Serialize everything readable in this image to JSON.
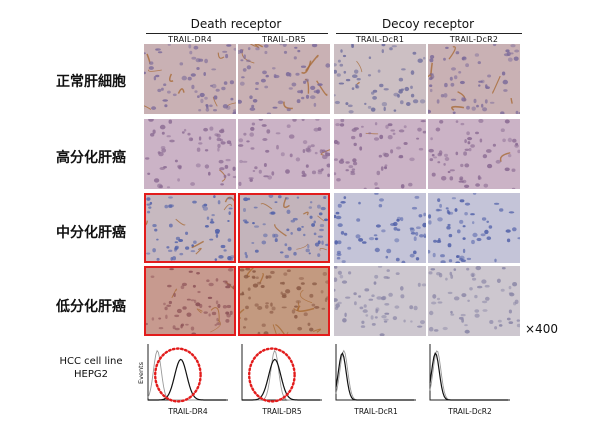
{
  "groups": {
    "death": "Death receptor",
    "decoy": "Decoy receptor"
  },
  "columns": [
    "TRAIL-DR4",
    "TRAIL-DR5",
    "TRAIL-DcR1",
    "TRAIL-DcR2"
  ],
  "rows": [
    "正常肝細胞",
    "高分化肝癌",
    "中分化肝癌",
    "低分化肝癌"
  ],
  "magnification": "×400",
  "cell_line": {
    "line1": "HCC cell line",
    "line2": "HEPG2",
    "y_axis": "Events",
    "x_labels": [
      "TRAIL-DR4",
      "TRAIL-DR5",
      "TRAIL-DcR1",
      "TRAIL-DcR2"
    ]
  },
  "colors": {
    "highlight": "#e21c1c",
    "tissue_normal": "#c9b1b4",
    "tissue_purple": "#cbb3c6",
    "tissue_blue": "#c4c4d8",
    "nuclei_blue": "#4f5fa8",
    "stain_brown": "#a5672f"
  }
}
